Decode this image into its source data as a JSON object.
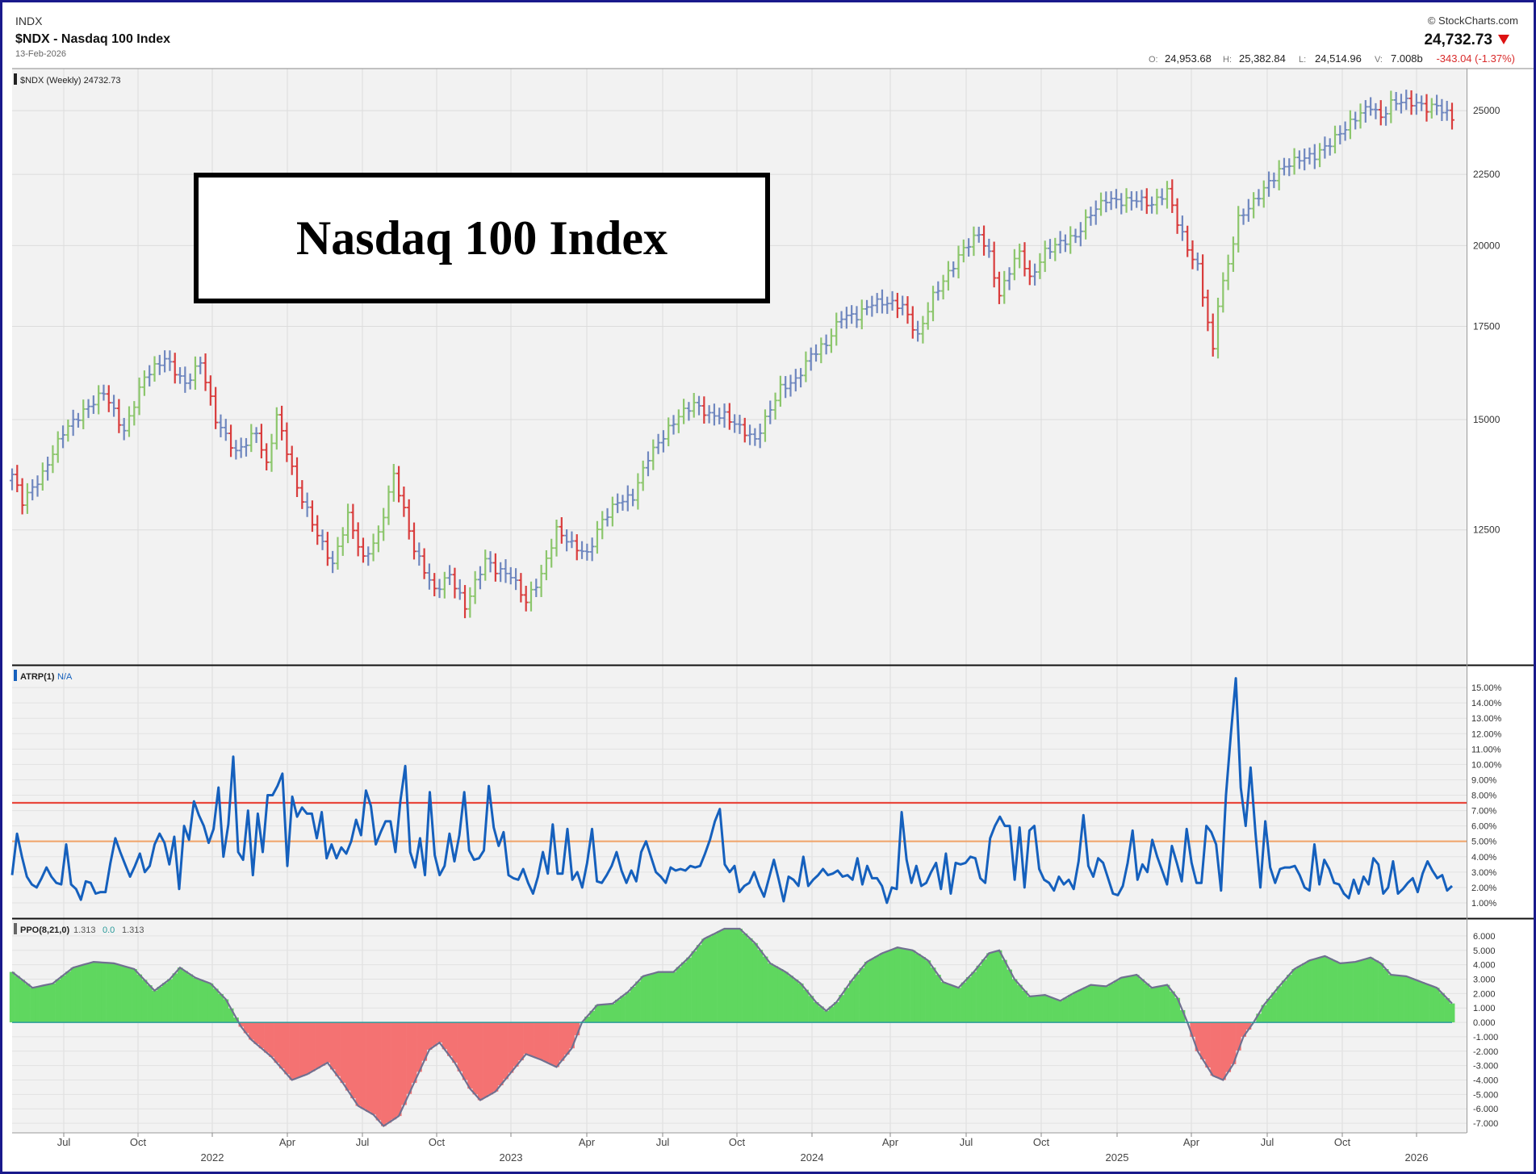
{
  "header": {
    "exchange": "INDX",
    "title": "$NDX - Nasdaq 100 Index",
    "date": "13-Feb-2026",
    "brand": "© StockCharts.com",
    "last_price": "24,732.73",
    "ohlcv": [
      {
        "label": "O:",
        "value": "24,953.68"
      },
      {
        "label": "H:",
        "value": "25,382.84"
      },
      {
        "label": "L:",
        "value": "24,514.96"
      },
      {
        "label": "V:",
        "value": "7.008b"
      }
    ],
    "change": "-343.04 (-1.37%)"
  },
  "overlay_title": "Nasdaq 100 Index",
  "colors": {
    "frame": "#1a1a8c",
    "up_bar": "#8cc66c",
    "down_bar": "#d93c3c",
    "neutral_bar": "#6f87bf",
    "atrp_line": "#1560bd",
    "upper_band": "#e8473c",
    "lower_band": "#f0a66e",
    "ppo_positive": "#5fd75f",
    "ppo_negative": "#f47272",
    "ppo_line": "#707090"
  },
  "chart_data": [
    {
      "type": "bar",
      "label": "$NDX (Weekly) 24732.73",
      "scale": "log",
      "yticks": [
        12500,
        15000,
        17500,
        20000,
        22500,
        25000
      ],
      "ytick_labels": [
        "12500",
        "15000",
        "17500",
        "20000",
        "22500",
        "25000"
      ],
      "x_start": "2021-05",
      "x_end": "2026-02",
      "x_month_ticks": [
        "Jul",
        "Oct",
        "2022",
        "Apr",
        "Jul",
        "Oct",
        "2023",
        "Apr",
        "Jul",
        "Oct",
        "2024",
        "Apr",
        "Jul",
        "Oct",
        "2025",
        "Apr",
        "Jul",
        "Oct",
        "2026"
      ],
      "weekly_closes_anchor": [
        [
          0,
          13700
        ],
        [
          2,
          13100
        ],
        [
          6,
          13700
        ],
        [
          10,
          14700
        ],
        [
          14,
          15200
        ],
        [
          18,
          15700
        ],
        [
          22,
          14700
        ],
        [
          26,
          16100
        ],
        [
          30,
          16600
        ],
        [
          34,
          15900
        ],
        [
          37,
          16500
        ],
        [
          40,
          15000
        ],
        [
          44,
          14200
        ],
        [
          48,
          14700
        ],
        [
          50,
          13900
        ],
        [
          52,
          15100
        ],
        [
          56,
          13400
        ],
        [
          60,
          12400
        ],
        [
          63,
          11800
        ],
        [
          66,
          12800
        ],
        [
          69,
          11900
        ],
        [
          72,
          12400
        ],
        [
          75,
          13700
        ],
        [
          79,
          12100
        ],
        [
          83,
          11300
        ],
        [
          86,
          11600
        ],
        [
          89,
          11000
        ],
        [
          93,
          11900
        ],
        [
          95,
          11700
        ],
        [
          98,
          11600
        ],
        [
          101,
          11100
        ],
        [
          104,
          11600
        ],
        [
          107,
          12500
        ],
        [
          110,
          12200
        ],
        [
          113,
          12000
        ],
        [
          116,
          12700
        ],
        [
          119,
          13100
        ],
        [
          122,
          13200
        ],
        [
          125,
          14100
        ],
        [
          128,
          14600
        ],
        [
          131,
          15100
        ],
        [
          134,
          15400
        ],
        [
          137,
          15100
        ],
        [
          140,
          15100
        ],
        [
          143,
          14800
        ],
        [
          146,
          14500
        ],
        [
          148,
          15000
        ],
        [
          151,
          15800
        ],
        [
          154,
          16000
        ],
        [
          157,
          16700
        ],
        [
          160,
          17000
        ],
        [
          163,
          17800
        ],
        [
          166,
          17800
        ],
        [
          169,
          18200
        ],
        [
          172,
          18200
        ],
        [
          175,
          18100
        ],
        [
          178,
          17200
        ],
        [
          181,
          18400
        ],
        [
          184,
          19100
        ],
        [
          187,
          19900
        ],
        [
          190,
          20400
        ],
        [
          192,
          19700
        ],
        [
          194,
          18400
        ],
        [
          196,
          19200
        ],
        [
          198,
          19800
        ],
        [
          200,
          18900
        ],
        [
          203,
          19800
        ],
        [
          206,
          20100
        ],
        [
          209,
          20300
        ],
        [
          212,
          21100
        ],
        [
          215,
          21600
        ],
        [
          218,
          21500
        ],
        [
          221,
          21600
        ],
        [
          224,
          21400
        ],
        [
          227,
          21900
        ],
        [
          229,
          20800
        ],
        [
          231,
          19900
        ],
        [
          233,
          19300
        ],
        [
          235,
          17600
        ],
        [
          236,
          16800
        ],
        [
          237,
          18200
        ],
        [
          239,
          19400
        ],
        [
          241,
          20900
        ],
        [
          244,
          21500
        ],
        [
          247,
          22200
        ],
        [
          250,
          22800
        ],
        [
          253,
          23100
        ],
        [
          256,
          23200
        ],
        [
          259,
          23700
        ],
        [
          262,
          24300
        ],
        [
          265,
          24900
        ],
        [
          267,
          25200
        ],
        [
          269,
          24700
        ],
        [
          271,
          25300
        ],
        [
          273,
          25400
        ],
        [
          276,
          25300
        ],
        [
          278,
          25100
        ],
        [
          280,
          25200
        ],
        [
          283,
          24700
        ]
      ]
    },
    {
      "type": "line",
      "label": "ATRP(1)",
      "label_value": "N/A",
      "ylim": [
        0,
        16
      ],
      "yticks": [
        1,
        2,
        3,
        4,
        5,
        6,
        7,
        8,
        9,
        10,
        11,
        12,
        13,
        14,
        15
      ],
      "ytick_labels": [
        "1.00%",
        "2.00%",
        "3.00%",
        "4.00%",
        "5.00%",
        "6.00%",
        "7.00%",
        "8.00%",
        "9.00%",
        "10.00%",
        "11.00%",
        "12.00%",
        "13.00%",
        "14.00%",
        "15.00%"
      ],
      "reference_lines": [
        7.5,
        5.0
      ],
      "values": [
        2.8,
        5.5,
        4.0,
        2.7,
        2.2,
        2.0,
        2.6,
        3.3,
        2.7,
        2.3,
        2.2,
        4.8,
        2.2,
        1.9,
        1.2,
        2.4,
        2.3,
        1.6,
        1.7,
        1.7,
        3.6,
        5.2,
        4.3,
        3.5,
        2.7,
        3.4,
        4.2,
        3.0,
        3.4,
        4.8,
        5.5,
        4.9,
        3.5,
        5.3,
        1.9,
        6.0,
        5.1,
        7.6,
        6.7,
        6.0,
        4.9,
        5.8,
        8.5,
        4.0,
        6.1,
        10.5,
        4.3,
        3.8,
        7.0,
        2.8,
        6.8,
        4.3,
        8.0,
        8.0,
        8.6,
        9.4,
        3.4,
        7.9,
        6.6,
        7.2,
        6.8,
        6.8,
        5.2,
        6.9,
        3.9,
        4.8,
        3.9,
        4.6,
        4.2,
        5.0,
        6.4,
        5.4,
        8.3,
        7.3,
        4.8,
        5.6,
        6.3,
        6.3,
        4.3,
        7.6,
        9.9,
        4.3,
        3.3,
        5.2,
        2.8,
        8.2,
        4.1,
        2.8,
        3.4,
        5.5,
        3.7,
        5.4,
        8.2,
        4.4,
        3.8,
        3.9,
        4.4,
        8.6,
        5.9,
        4.7,
        5.6,
        2.8,
        2.6,
        2.5,
        3.2,
        2.3,
        1.6,
        2.7,
        4.3,
        2.9,
        6.1,
        2.9,
        2.9,
        5.8,
        2.5,
        3.0,
        2.0,
        3.6,
        5.8,
        2.4,
        2.3,
        2.8,
        3.4,
        4.3,
        3.1,
        2.3,
        3.1,
        2.4,
        4.3,
        5.0,
        4.0,
        3.0,
        2.7,
        2.3,
        3.3,
        3.1,
        3.2,
        3.1,
        3.4,
        3.3,
        3.4,
        4.2,
        5.1,
        6.3,
        7.1,
        3.5,
        3.0,
        3.4,
        1.7,
        2.1,
        2.3,
        3.0,
        2.1,
        1.4,
        2.6,
        3.8,
        2.5,
        1.1,
        2.7,
        2.5,
        2.1,
        4.0,
        2.1,
        2.5,
        2.8,
        3.2,
        2.8,
        2.9,
        3.1,
        2.7,
        2.8,
        2.5,
        3.9,
        2.2,
        3.4,
        2.6,
        2.6,
        2.1,
        1.0,
        2.0,
        1.9,
        6.9,
        3.8,
        2.3,
        3.4,
        2.1,
        2.3,
        3.0,
        3.6,
        1.9,
        4.2,
        1.6,
        3.6,
        3.5,
        3.6,
        4.0,
        3.9,
        2.6,
        2.3,
        5.2,
        6.0,
        6.6,
        6.0,
        6.0,
        2.5,
        5.9,
        2.0,
        5.7,
        6.0,
        3.2,
        2.5,
        2.3,
        1.8,
        2.7,
        2.2,
        2.5,
        1.9,
        3.7,
        6.7,
        3.4,
        2.7,
        3.9,
        3.6,
        2.6,
        1.6,
        1.5,
        2.1,
        3.6,
        5.7,
        2.5,
        3.5,
        3.0,
        5.1,
        4.0,
        3.1,
        2.2,
        4.7,
        3.6,
        2.4,
        5.8,
        3.6,
        2.3,
        2.3,
        6.0,
        5.6,
        4.8,
        1.8,
        8.0,
        12.0,
        15.6,
        8.5,
        6.0,
        9.8,
        5.5,
        2.0,
        6.3,
        3.3,
        2.3,
        3.2,
        3.3,
        3.3,
        3.4,
        2.8,
        2.0,
        1.8,
        4.8,
        2.2,
        3.8,
        3.2,
        2.3,
        2.2,
        1.6,
        1.3,
        2.5,
        1.6,
        2.7,
        2.2,
        3.9,
        3.5,
        1.6,
        2.0,
        3.7,
        1.6,
        1.9,
        2.3,
        2.6,
        1.7,
        2.9,
        3.7,
        3.1,
        2.6,
        2.8,
        1.8,
        2.1
      ]
    },
    {
      "type": "area",
      "label": "PPO(8,21,0)",
      "label_values": [
        "1.313",
        "0.0",
        "1.313"
      ],
      "ylim": [
        -7.5,
        6.5
      ],
      "yticks": [
        -7,
        -6,
        -5,
        -4,
        -3,
        -2,
        -1,
        0,
        1,
        2,
        3,
        4,
        5,
        6
      ],
      "ytick_labels": [
        "-7.000",
        "-6.000",
        "-5.000",
        "-4.000",
        "-3.000",
        "-2.000",
        "-1.000",
        "0.000",
        "1.000",
        "2.000",
        "3.000",
        "4.000",
        "5.000",
        "6.000"
      ],
      "values_anchor": [
        [
          0,
          3.5
        ],
        [
          4,
          2.4
        ],
        [
          8,
          2.7
        ],
        [
          12,
          3.8
        ],
        [
          16,
          4.2
        ],
        [
          20,
          4.1
        ],
        [
          24,
          3.7
        ],
        [
          28,
          2.2
        ],
        [
          31,
          3.0
        ],
        [
          33,
          3.8
        ],
        [
          36,
          3.1
        ],
        [
          39,
          2.7
        ],
        [
          42,
          1.6
        ],
        [
          45,
          -0.3
        ],
        [
          47,
          -1.2
        ],
        [
          51,
          -2.4
        ],
        [
          55,
          -4.0
        ],
        [
          58,
          -3.6
        ],
        [
          62,
          -2.8
        ],
        [
          65,
          -4.2
        ],
        [
          68,
          -5.8
        ],
        [
          71,
          -6.4
        ],
        [
          73,
          -7.2
        ],
        [
          76,
          -6.5
        ],
        [
          79,
          -4.2
        ],
        [
          82,
          -1.9
        ],
        [
          84,
          -1.4
        ],
        [
          87,
          -2.8
        ],
        [
          90,
          -4.6
        ],
        [
          92,
          -5.4
        ],
        [
          95,
          -4.8
        ],
        [
          98,
          -3.5
        ],
        [
          101,
          -2.2
        ],
        [
          104,
          -2.6
        ],
        [
          107,
          -3.1
        ],
        [
          110,
          -1.8
        ],
        [
          112,
          0.0
        ],
        [
          115,
          1.2
        ],
        [
          118,
          1.3
        ],
        [
          121,
          2.1
        ],
        [
          124,
          3.2
        ],
        [
          127,
          3.5
        ],
        [
          130,
          3.5
        ],
        [
          133,
          4.5
        ],
        [
          136,
          5.8
        ],
        [
          140,
          6.5
        ],
        [
          143,
          6.5
        ],
        [
          146,
          5.5
        ],
        [
          149,
          4.1
        ],
        [
          152,
          3.5
        ],
        [
          155,
          2.7
        ],
        [
          158,
          1.4
        ],
        [
          160,
          0.8
        ],
        [
          162,
          1.4
        ],
        [
          165,
          2.9
        ],
        [
          168,
          4.2
        ],
        [
          171,
          4.8
        ],
        [
          174,
          5.2
        ],
        [
          177,
          5.0
        ],
        [
          180,
          4.3
        ],
        [
          183,
          2.8
        ],
        [
          186,
          2.4
        ],
        [
          189,
          3.5
        ],
        [
          192,
          4.8
        ],
        [
          194,
          5.0
        ],
        [
          197,
          3.0
        ],
        [
          200,
          1.8
        ],
        [
          203,
          1.9
        ],
        [
          206,
          1.5
        ],
        [
          209,
          2.1
        ],
        [
          212,
          2.6
        ],
        [
          215,
          2.5
        ],
        [
          218,
          3.1
        ],
        [
          221,
          3.3
        ],
        [
          224,
          2.4
        ],
        [
          227,
          2.6
        ],
        [
          229,
          1.7
        ],
        [
          231,
          0.0
        ],
        [
          233,
          -2.0
        ],
        [
          236,
          -3.7
        ],
        [
          238,
          -4.0
        ],
        [
          240,
          -2.9
        ],
        [
          242,
          -1.0
        ],
        [
          244,
          0.0
        ],
        [
          246,
          1.2
        ],
        [
          249,
          2.5
        ],
        [
          252,
          3.7
        ],
        [
          255,
          4.3
        ],
        [
          258,
          4.6
        ],
        [
          261,
          4.1
        ],
        [
          264,
          4.2
        ],
        [
          267,
          4.5
        ],
        [
          269,
          4.1
        ],
        [
          271,
          3.3
        ],
        [
          274,
          3.2
        ],
        [
          277,
          2.8
        ],
        [
          280,
          2.4
        ],
        [
          283,
          1.313
        ]
      ]
    }
  ]
}
